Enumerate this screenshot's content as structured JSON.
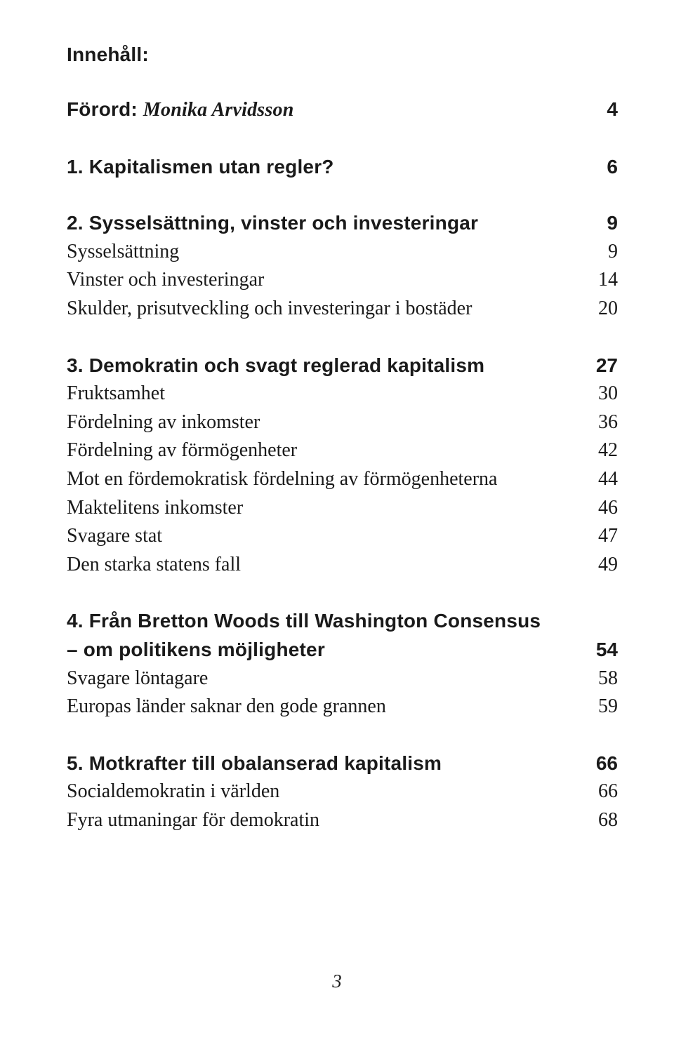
{
  "heading": "Innehåll:",
  "forord": {
    "title_prefix": "Förord: ",
    "title_italic": "Monika Arvidsson",
    "page": "4"
  },
  "sections": [
    {
      "title": "1. Kapitalismen utan regler?",
      "page": "6",
      "items": []
    },
    {
      "title": "2. Sysselsättning, vinster och investeringar",
      "page": "9",
      "items": [
        {
          "label": "Sysselsättning",
          "page": "9"
        },
        {
          "label": "Vinster och investeringar",
          "page": "14"
        },
        {
          "label": "Skulder, prisutveckling och investeringar i bostäder",
          "page": "20"
        }
      ]
    },
    {
      "title": "3. Demokratin och svagt reglerad kapitalism",
      "page": "27",
      "items": [
        {
          "label": "Fruktsamhet",
          "page": "30"
        },
        {
          "label": "Fördelning av inkomster",
          "page": "36"
        },
        {
          "label": "Fördelning av förmögenheter",
          "page": "42"
        },
        {
          "label": "Mot en fördemokratisk fördelning av förmögenheterna",
          "page": "44"
        },
        {
          "label": "Maktelitens inkomster",
          "page": "46"
        },
        {
          "label": "Svagare stat",
          "page": "47"
        },
        {
          "label": "Den starka statens fall",
          "page": "49"
        }
      ]
    },
    {
      "title_multiline": [
        "4. Från Bretton Woods till Washington Consensus",
        "– om politikens möjligheter"
      ],
      "page": "54",
      "items": [
        {
          "label": "Svagare löntagare",
          "page": "58"
        },
        {
          "label": "Europas länder saknar den gode grannen",
          "page": "59"
        }
      ]
    },
    {
      "title": "5. Motkrafter till obalanserad kapitalism",
      "page": "66",
      "items": [
        {
          "label": "Socialdemokratin i världen",
          "page": "66"
        },
        {
          "label": "Fyra utmaningar för demokratin",
          "page": "68"
        }
      ]
    }
  ],
  "page_number": "3"
}
